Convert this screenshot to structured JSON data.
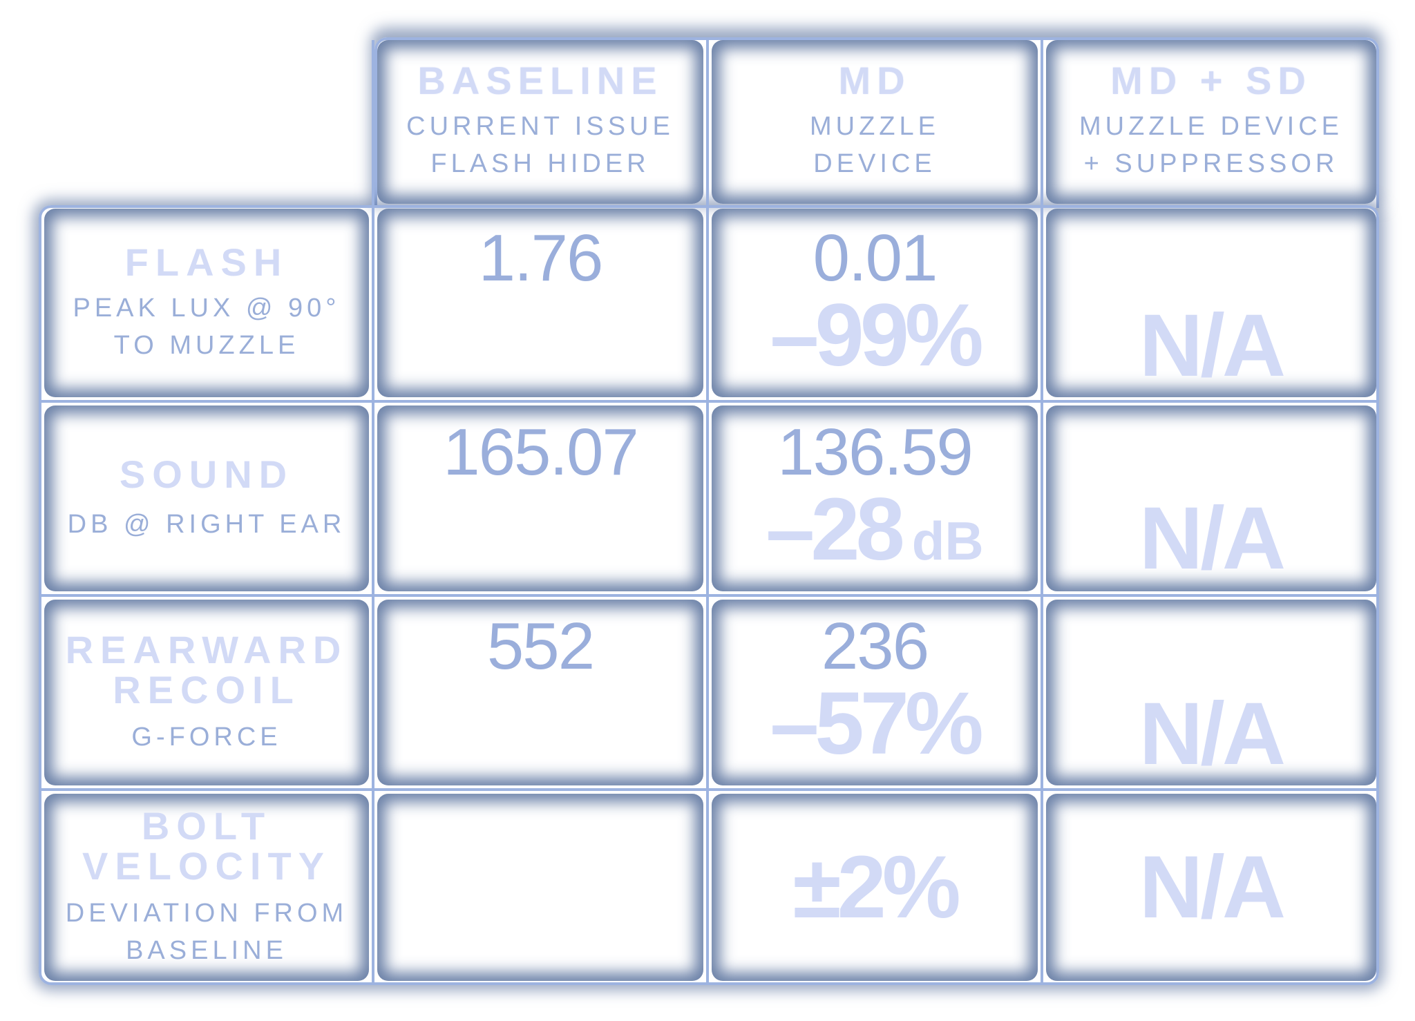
{
  "columns": [
    {
      "title": "BASELINE",
      "sub1": "CURRENT ISSUE",
      "sub2": "FLASH HIDER"
    },
    {
      "title": "MD",
      "sub1": "MUZZLE",
      "sub2": "DEVICE"
    },
    {
      "title": "MD + SD",
      "sub1": "MUZZLE DEVICE",
      "sub2": "+ SUPPRESSOR"
    }
  ],
  "rows": [
    {
      "title1": "FLASH",
      "title2": "",
      "sub1": "PEAK LUX @ 90°",
      "sub2": "TO MUZZLE",
      "baseline": "1.76",
      "md_value": "0.01",
      "md_delta": "–99%",
      "md_delta_unit": "",
      "mdsd": "N/A"
    },
    {
      "title1": "SOUND",
      "title2": "",
      "sub1": "DB @ RIGHT EAR",
      "sub2": "",
      "baseline": "165.07",
      "md_value": "136.59",
      "md_delta": "–28",
      "md_delta_unit": "dB",
      "mdsd": "N/A"
    },
    {
      "title1": "REARWARD",
      "title2": "RECOIL",
      "sub1": "G-FORCE",
      "sub2": "",
      "baseline": "552",
      "md_value": "236",
      "md_delta": "–57%",
      "md_delta_unit": "",
      "mdsd": "N/A"
    },
    {
      "title1": "BOLT",
      "title2": "VELOCITY",
      "sub1": "DEVIATION FROM",
      "sub2": "BASELINE",
      "baseline": "",
      "md_value": "",
      "md_delta": "±2%",
      "md_delta_unit": "",
      "mdsd": "N/A"
    }
  ]
}
